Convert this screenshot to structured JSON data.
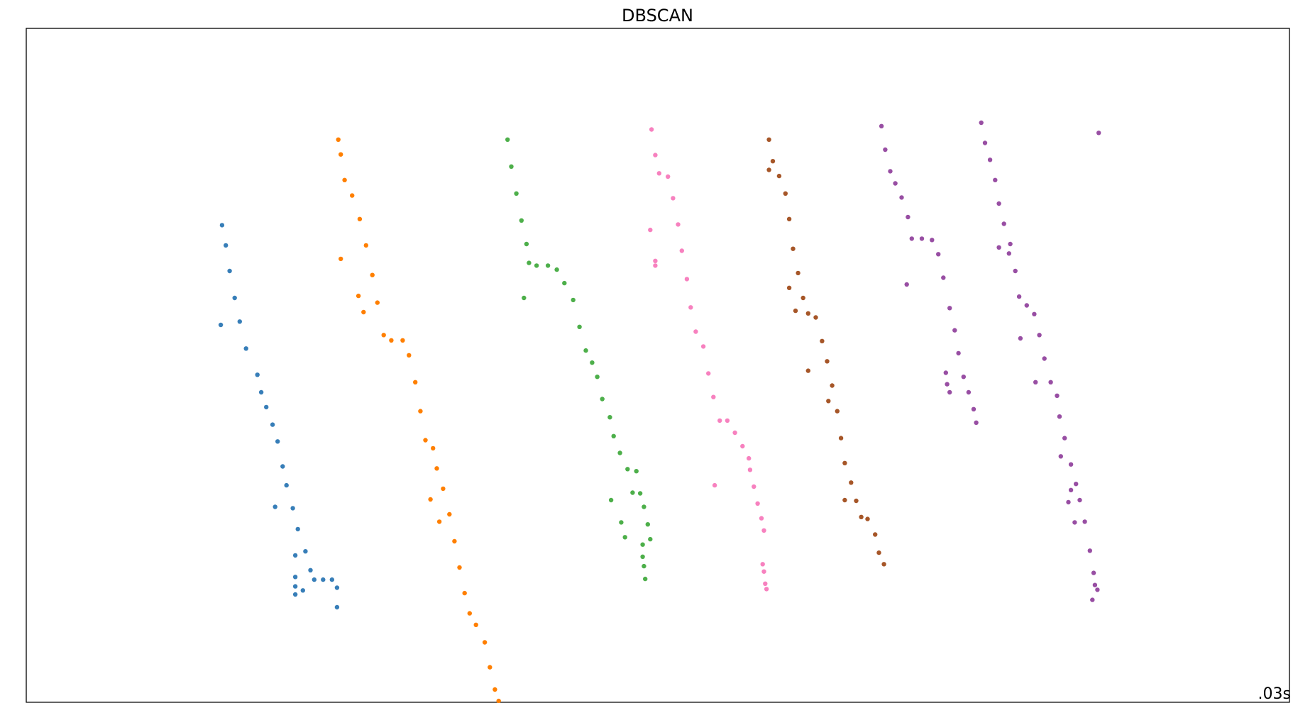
{
  "chart_data": {
    "type": "scatter",
    "title": "DBSCAN",
    "xlabel": "",
    "ylabel": "",
    "xlim": [
      0,
      100
    ],
    "ylim": [
      0,
      100
    ],
    "grid": false,
    "axis_ticks": "hidden",
    "annotation": ".03s",
    "annotation_position": "bottom-right",
    "series": [
      {
        "color": "#377eb8",
        "points": [
          [
            15.5,
            70.8
          ],
          [
            15.8,
            67.8
          ],
          [
            16.1,
            64.0
          ],
          [
            16.5,
            60.0
          ],
          [
            16.9,
            56.5
          ],
          [
            17.4,
            52.5
          ],
          [
            18.3,
            48.6
          ],
          [
            18.6,
            46.0
          ],
          [
            19.0,
            43.8
          ],
          [
            19.5,
            41.2
          ],
          [
            19.9,
            38.7
          ],
          [
            20.3,
            35.0
          ],
          [
            20.6,
            32.2
          ],
          [
            21.1,
            28.8
          ],
          [
            21.5,
            25.7
          ],
          [
            22.1,
            22.4
          ],
          [
            22.5,
            19.6
          ],
          [
            22.8,
            18.2
          ],
          [
            23.5,
            18.2
          ],
          [
            24.2,
            18.2
          ],
          [
            24.6,
            17.0
          ],
          [
            24.6,
            14.1
          ],
          [
            15.4,
            56.0
          ],
          [
            19.7,
            29.0
          ],
          [
            21.3,
            21.8
          ],
          [
            21.3,
            18.6
          ],
          [
            21.3,
            17.2
          ],
          [
            21.3,
            16.0
          ],
          [
            21.9,
            16.6
          ]
        ]
      },
      {
        "color": "#ff7f00",
        "points": [
          [
            24.7,
            83.5
          ],
          [
            24.9,
            81.3
          ],
          [
            25.2,
            77.5
          ],
          [
            25.8,
            75.2
          ],
          [
            26.4,
            71.7
          ],
          [
            26.9,
            67.8
          ],
          [
            27.4,
            63.4
          ],
          [
            27.8,
            59.3
          ],
          [
            28.3,
            54.5
          ],
          [
            28.9,
            53.7
          ],
          [
            29.8,
            53.7
          ],
          [
            30.3,
            51.5
          ],
          [
            30.8,
            47.5
          ],
          [
            31.2,
            43.2
          ],
          [
            31.6,
            38.9
          ],
          [
            32.2,
            37.7
          ],
          [
            32.5,
            34.7
          ],
          [
            33.0,
            31.7
          ],
          [
            33.5,
            27.9
          ],
          [
            33.9,
            23.9
          ],
          [
            34.3,
            20.0
          ],
          [
            34.7,
            16.2
          ],
          [
            35.1,
            13.2
          ],
          [
            35.6,
            11.5
          ],
          [
            36.3,
            8.9
          ],
          [
            36.7,
            5.2
          ],
          [
            37.1,
            1.9
          ],
          [
            37.4,
            0.2
          ],
          [
            24.9,
            65.8
          ],
          [
            26.3,
            60.3
          ],
          [
            26.7,
            57.9
          ],
          [
            32.0,
            30.1
          ],
          [
            32.7,
            26.8
          ]
        ]
      },
      {
        "color": "#4daf4a",
        "points": [
          [
            38.1,
            83.5
          ],
          [
            38.4,
            79.5
          ],
          [
            38.8,
            75.5
          ],
          [
            39.2,
            71.5
          ],
          [
            39.6,
            68.0
          ],
          [
            39.8,
            65.2
          ],
          [
            40.4,
            64.8
          ],
          [
            41.3,
            64.8
          ],
          [
            42.0,
            64.2
          ],
          [
            42.6,
            62.2
          ],
          [
            43.3,
            59.7
          ],
          [
            43.8,
            55.7
          ],
          [
            44.3,
            52.2
          ],
          [
            44.8,
            50.4
          ],
          [
            45.2,
            48.3
          ],
          [
            45.6,
            45.0
          ],
          [
            46.2,
            42.3
          ],
          [
            46.5,
            39.5
          ],
          [
            47.0,
            37.0
          ],
          [
            47.6,
            34.6
          ],
          [
            48.0,
            31.1
          ],
          [
            48.6,
            31.0
          ],
          [
            48.9,
            29.0
          ],
          [
            49.2,
            26.4
          ],
          [
            49.4,
            24.2
          ],
          [
            39.4,
            60.0
          ],
          [
            46.3,
            30.0
          ],
          [
            47.1,
            26.7
          ],
          [
            47.4,
            24.5
          ],
          [
            48.3,
            34.3
          ],
          [
            48.8,
            23.4
          ],
          [
            48.8,
            21.6
          ],
          [
            48.9,
            20.2
          ],
          [
            49.0,
            18.3
          ]
        ]
      },
      {
        "color": "#f781bf",
        "points": [
          [
            49.5,
            85.0
          ],
          [
            49.8,
            81.2
          ],
          [
            50.1,
            78.5
          ],
          [
            50.8,
            78.0
          ],
          [
            51.2,
            74.8
          ],
          [
            51.6,
            70.9
          ],
          [
            51.9,
            67.0
          ],
          [
            52.3,
            62.8
          ],
          [
            52.6,
            58.6
          ],
          [
            53.0,
            55.0
          ],
          [
            53.6,
            52.8
          ],
          [
            54.0,
            48.8
          ],
          [
            54.4,
            45.3
          ],
          [
            54.9,
            41.8
          ],
          [
            55.5,
            41.8
          ],
          [
            56.1,
            40.0
          ],
          [
            56.7,
            38.0
          ],
          [
            57.2,
            36.2
          ],
          [
            57.3,
            34.5
          ],
          [
            57.6,
            32.0
          ],
          [
            57.9,
            29.5
          ],
          [
            58.2,
            27.3
          ],
          [
            58.4,
            25.5
          ],
          [
            49.4,
            70.1
          ],
          [
            49.8,
            65.5
          ],
          [
            49.8,
            64.8
          ],
          [
            54.5,
            32.2
          ],
          [
            58.3,
            20.5
          ],
          [
            58.4,
            19.4
          ],
          [
            58.5,
            17.6
          ],
          [
            58.6,
            16.8
          ]
        ]
      },
      {
        "color": "#a65628",
        "points": [
          [
            58.8,
            83.5
          ],
          [
            59.1,
            80.3
          ],
          [
            59.6,
            78.1
          ],
          [
            60.1,
            75.5
          ],
          [
            60.4,
            71.7
          ],
          [
            60.7,
            67.3
          ],
          [
            61.1,
            63.7
          ],
          [
            61.5,
            60.0
          ],
          [
            61.9,
            57.7
          ],
          [
            62.5,
            57.1
          ],
          [
            63.0,
            53.6
          ],
          [
            63.4,
            50.6
          ],
          [
            63.8,
            47.0
          ],
          [
            64.2,
            43.2
          ],
          [
            64.5,
            39.2
          ],
          [
            64.8,
            35.5
          ],
          [
            65.3,
            32.6
          ],
          [
            65.7,
            29.9
          ],
          [
            66.1,
            27.5
          ],
          [
            66.6,
            27.2
          ],
          [
            67.2,
            24.9
          ],
          [
            67.5,
            22.2
          ],
          [
            67.9,
            20.5
          ],
          [
            58.8,
            79.0
          ],
          [
            60.4,
            61.5
          ],
          [
            60.9,
            58.1
          ],
          [
            61.9,
            49.2
          ],
          [
            63.5,
            44.7
          ],
          [
            64.8,
            30.0
          ]
        ]
      },
      {
        "color": "#984ea3",
        "points": [
          [
            67.7,
            85.5
          ],
          [
            68.0,
            82.0
          ],
          [
            68.4,
            78.8
          ],
          [
            68.8,
            77.0
          ],
          [
            69.3,
            74.9
          ],
          [
            69.8,
            72.0
          ],
          [
            70.1,
            68.8
          ],
          [
            70.9,
            68.8
          ],
          [
            71.7,
            68.6
          ],
          [
            72.2,
            66.5
          ],
          [
            72.6,
            63.0
          ],
          [
            73.1,
            58.5
          ],
          [
            73.5,
            55.2
          ],
          [
            73.8,
            51.8
          ],
          [
            74.2,
            48.3
          ],
          [
            74.6,
            46.0
          ],
          [
            75.0,
            43.5
          ],
          [
            75.2,
            41.5
          ],
          [
            69.7,
            62.0
          ],
          [
            72.8,
            48.9
          ],
          [
            72.9,
            47.2
          ],
          [
            73.1,
            46.0
          ]
        ]
      },
      {
        "color": "#984ea3",
        "points": [
          [
            75.6,
            86.0
          ],
          [
            75.9,
            83.0
          ],
          [
            76.3,
            80.5
          ],
          [
            76.7,
            77.5
          ],
          [
            77.0,
            74.0
          ],
          [
            77.4,
            71.0
          ],
          [
            77.9,
            68.0
          ],
          [
            78.3,
            64.0
          ],
          [
            78.6,
            60.2
          ],
          [
            79.2,
            58.9
          ],
          [
            79.8,
            57.6
          ],
          [
            80.2,
            54.5
          ],
          [
            80.6,
            51.0
          ],
          [
            81.1,
            47.5
          ],
          [
            81.6,
            45.5
          ],
          [
            81.8,
            42.4
          ],
          [
            82.2,
            39.2
          ],
          [
            82.7,
            35.3
          ],
          [
            83.1,
            32.4
          ],
          [
            83.4,
            30.0
          ],
          [
            83.8,
            26.8
          ],
          [
            84.2,
            22.5
          ],
          [
            84.5,
            19.2
          ],
          [
            84.8,
            16.7
          ],
          [
            84.6,
            17.4
          ],
          [
            77.0,
            67.5
          ],
          [
            77.8,
            66.6
          ],
          [
            78.7,
            54.0
          ],
          [
            79.9,
            47.5
          ],
          [
            81.9,
            36.5
          ],
          [
            82.7,
            31.5
          ],
          [
            82.5,
            29.7
          ],
          [
            83.0,
            26.7
          ],
          [
            84.4,
            15.2
          ],
          [
            84.9,
            84.5
          ]
        ]
      }
    ]
  }
}
